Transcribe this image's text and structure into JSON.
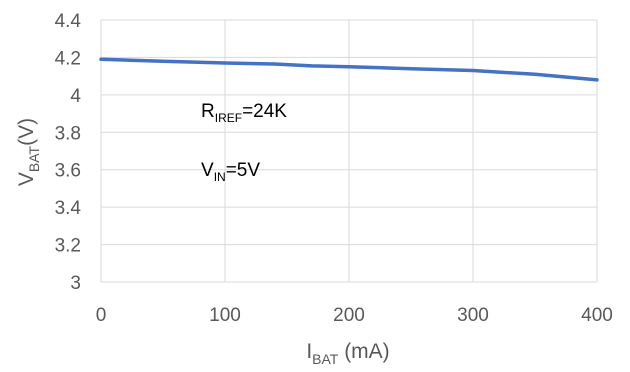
{
  "chart_data": {
    "type": "line",
    "xlabel": "I_BAT (mA)",
    "ylabel": "V_BAT(V)",
    "xlim": [
      0,
      400
    ],
    "ylim": [
      3,
      4.4
    ],
    "xticks": [
      0,
      100,
      200,
      300,
      400
    ],
    "yticks": [
      3,
      3.2,
      3.4,
      3.6,
      3.8,
      4,
      4.2,
      4.4
    ],
    "ytick_labels": [
      "3",
      "3.2",
      "3.4",
      "3.6",
      "3.8",
      "4",
      "4.2",
      "4.4"
    ],
    "xtick_labels": [
      "0",
      "100",
      "200",
      "300",
      "400"
    ],
    "grid": true,
    "series": [
      {
        "color": "#4472C4",
        "x": [
          0,
          50,
          100,
          140,
          170,
          200,
          250,
          300,
          350,
          400
        ],
        "y": [
          4.19,
          4.18,
          4.17,
          4.165,
          4.155,
          4.15,
          4.14,
          4.13,
          4.11,
          4.08
        ]
      }
    ],
    "annotations": [
      {
        "main": "R",
        "sub": "IREF",
        "rest": "=24K"
      },
      {
        "main": "V",
        "sub": "IN",
        "rest": "=5V"
      }
    ],
    "axis_labels": {
      "x": {
        "main": "I",
        "sub": "BAT",
        "rest": " (mA)"
      },
      "y": {
        "main": "V",
        "sub": "BAT",
        "rest": "(V)"
      }
    }
  }
}
